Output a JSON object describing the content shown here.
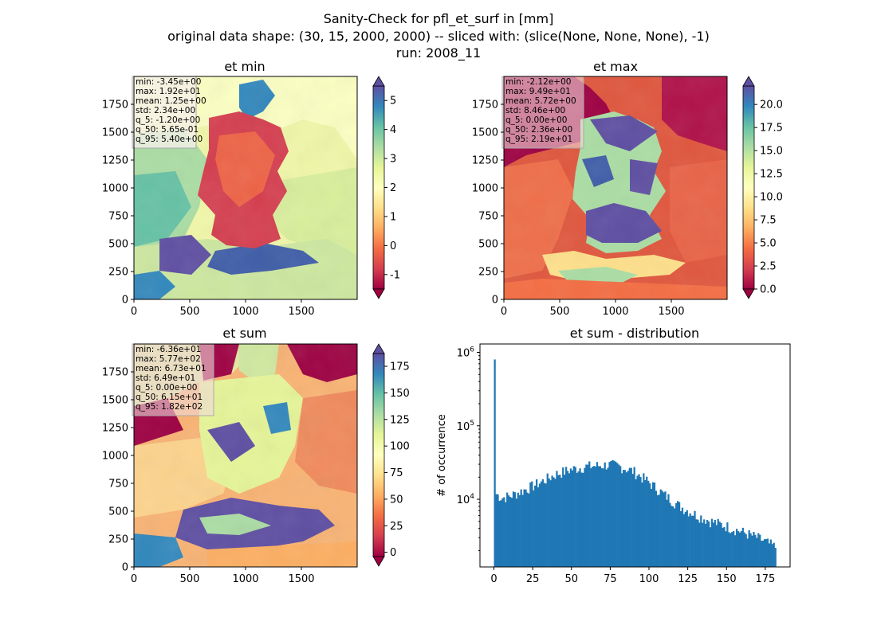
{
  "suptitle": [
    "Sanity-Check for pfl_et_surf in [mm]",
    "original data shape: (30, 15, 2000, 2000) -- sliced with: (slice(None, None, None), -1)",
    "run: 2008_11"
  ],
  "colors": {
    "cmap": [
      "#9e0142",
      "#d53e4f",
      "#f46d43",
      "#fdae61",
      "#fee08b",
      "#ffffbf",
      "#e6f598",
      "#abdda4",
      "#66c2a5",
      "#3288bd",
      "#5e4fa2"
    ],
    "hist_bar": "#1f77b4",
    "stats_box": "#f2e6e6"
  },
  "chart_data": [
    {
      "type": "heatmap",
      "title": "et min",
      "x_ticks": [
        0,
        500,
        1000,
        1500
      ],
      "y_ticks": [
        0,
        250,
        500,
        750,
        1000,
        1250,
        1500,
        1750
      ],
      "xlim": [
        0,
        2000
      ],
      "ylim": [
        0,
        2000
      ],
      "colorbar": {
        "min": -1.5,
        "max": 5.5,
        "ticks": [
          -1,
          0,
          1,
          2,
          3,
          4,
          5
        ],
        "extend": "both"
      },
      "stats": [
        "min: -3.45e+00",
        "max: 1.92e+01",
        "mean: 1.25e+00",
        "std: 2.34e+00",
        "q_5: -1.20e+00",
        "q_50: 5.65e-01",
        "q_95: 5.40e+00"
      ]
    },
    {
      "type": "heatmap",
      "title": "et max",
      "x_ticks": [
        0,
        500,
        1000,
        1500
      ],
      "y_ticks": [
        0,
        250,
        500,
        750,
        1000,
        1250,
        1500,
        1750
      ],
      "xlim": [
        0,
        2000
      ],
      "ylim": [
        0,
        2000
      ],
      "colorbar": {
        "min": 0,
        "max": 22,
        "ticks": [
          0.0,
          2.5,
          5.0,
          7.5,
          10.0,
          12.5,
          15.0,
          17.5,
          20.0
        ],
        "tick_labels": [
          "0.0",
          "2.5",
          "5.0",
          "7.5",
          "10.0",
          "12.5",
          "15.0",
          "17.5",
          "20.0"
        ],
        "extend": "both"
      },
      "stats": [
        "min: -2.12e+00",
        "max: 9.49e+01",
        "mean: 5.72e+00",
        "std: 8.46e+00",
        "q_5: 0.00e+00",
        "q_50: 2.36e+00",
        "q_95: 2.19e+01"
      ]
    },
    {
      "type": "heatmap",
      "title": "et sum",
      "x_ticks": [
        0,
        500,
        1000,
        1500
      ],
      "y_ticks": [
        0,
        250,
        500,
        750,
        1000,
        1250,
        1500,
        1750
      ],
      "xlim": [
        0,
        2000
      ],
      "ylim": [
        0,
        2000
      ],
      "colorbar": {
        "min": -4,
        "max": 187,
        "ticks": [
          0,
          25,
          50,
          75,
          100,
          125,
          150,
          175
        ],
        "extend": "both"
      },
      "stats": [
        "min: -6.36e+01",
        "max: 5.77e+02",
        "mean: 6.73e+01",
        "std: 6.49e+01",
        "q_5: 0.00e+00",
        "q_50: 6.15e+01",
        "q_95: 1.82e+02"
      ]
    },
    {
      "type": "bar",
      "title": "et sum - distribution",
      "ylabel": "# of occurrence",
      "xlabel": "",
      "y_scale": "log",
      "xlim": [
        -9,
        191
      ],
      "ylim": [
        1200,
        1300000
      ],
      "x_ticks": [
        0,
        25,
        50,
        75,
        100,
        125,
        150,
        175
      ],
      "y_tick_labels": [
        "10^4",
        "10^5",
        "10^6"
      ],
      "spike": {
        "x": 0,
        "count": 800000
      },
      "bins": {
        "start": 0,
        "end": 182,
        "count": 182
      },
      "profile_points": [
        [
          1,
          12000
        ],
        [
          5,
          10500
        ],
        [
          10,
          11000
        ],
        [
          20,
          13500
        ],
        [
          30,
          17000
        ],
        [
          40,
          22000
        ],
        [
          50,
          25500
        ],
        [
          60,
          28000
        ],
        [
          70,
          29000
        ],
        [
          75,
          29500
        ],
        [
          80,
          28500
        ],
        [
          90,
          24000
        ],
        [
          100,
          17000
        ],
        [
          110,
          11500
        ],
        [
          120,
          8000
        ],
        [
          130,
          6200
        ],
        [
          140,
          5000
        ],
        [
          150,
          4300
        ],
        [
          160,
          3600
        ],
        [
          170,
          3000
        ],
        [
          182,
          2200
        ]
      ]
    }
  ]
}
